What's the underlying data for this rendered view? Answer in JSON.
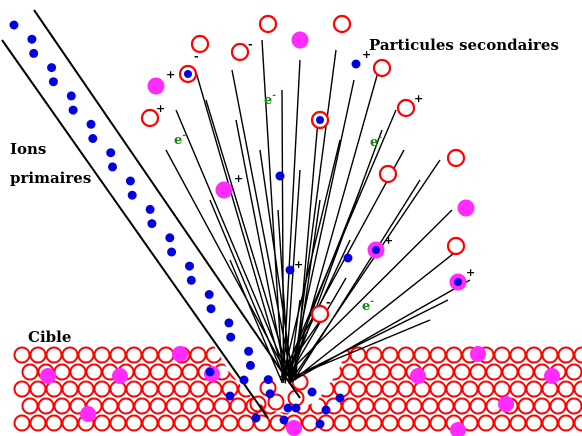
{
  "labels": {
    "secondary_particles": "Particules secondaires",
    "primary_ions_line1": "Ions",
    "primary_ions_line2": "primaires",
    "target": "Cible"
  },
  "symbols": {
    "plus": "+",
    "minus": "-",
    "electron": "e",
    "electron_sup": "-"
  },
  "colors": {
    "atom_ring": "#ff0000",
    "ion_blue": "#0000e0",
    "ion_magenta": "#ff2bff",
    "electron_green": "#0a8a0a",
    "line": "#000000"
  }
}
